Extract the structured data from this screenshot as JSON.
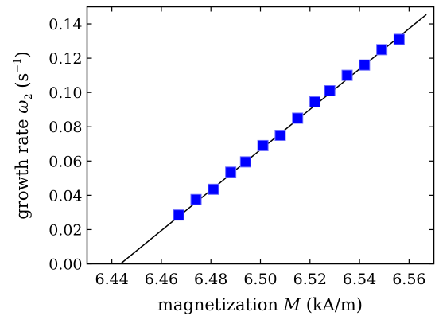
{
  "chart_data": {
    "type": "scatter",
    "xlabel_prefix": "magnetization ",
    "xlabel_symbol": "M",
    "xlabel_unit": " (kA/m)",
    "ylabel_prefix": "growth rate ",
    "ylabel_symbol": "ω",
    "ylabel_subscript": "2",
    "ylabel_unit_open": " (s",
    "ylabel_unit_exp": "−1",
    "ylabel_unit_close": ")",
    "xlim": [
      6.43,
      6.57
    ],
    "ylim": [
      0.0,
      0.15
    ],
    "x_ticks": [
      "6.44",
      "6.46",
      "6.48",
      "6.50",
      "6.52",
      "6.54",
      "6.56"
    ],
    "x_tick_values": [
      6.44,
      6.46,
      6.48,
      6.5,
      6.52,
      6.54,
      6.56
    ],
    "y_ticks": [
      "0.00",
      "0.02",
      "0.04",
      "0.06",
      "0.08",
      "0.10",
      "0.12",
      "0.14"
    ],
    "y_tick_values": [
      0.0,
      0.02,
      0.04,
      0.06,
      0.08,
      0.1,
      0.12,
      0.14
    ],
    "grid": false,
    "series": [
      {
        "marker": "square",
        "color": "#0000ff",
        "x": [
          6.467,
          6.474,
          6.481,
          6.488,
          6.494,
          6.501,
          6.508,
          6.515,
          6.522,
          6.528,
          6.535,
          6.542,
          6.549,
          6.556
        ],
        "y": [
          0.0285,
          0.0375,
          0.0435,
          0.0535,
          0.0595,
          0.069,
          0.075,
          0.085,
          0.0945,
          0.101,
          0.11,
          0.116,
          0.125,
          0.131
        ]
      }
    ],
    "fit_line": {
      "color": "#000000",
      "x": [
        6.4435,
        6.567
      ],
      "y": [
        0.0,
        0.1455
      ]
    }
  }
}
